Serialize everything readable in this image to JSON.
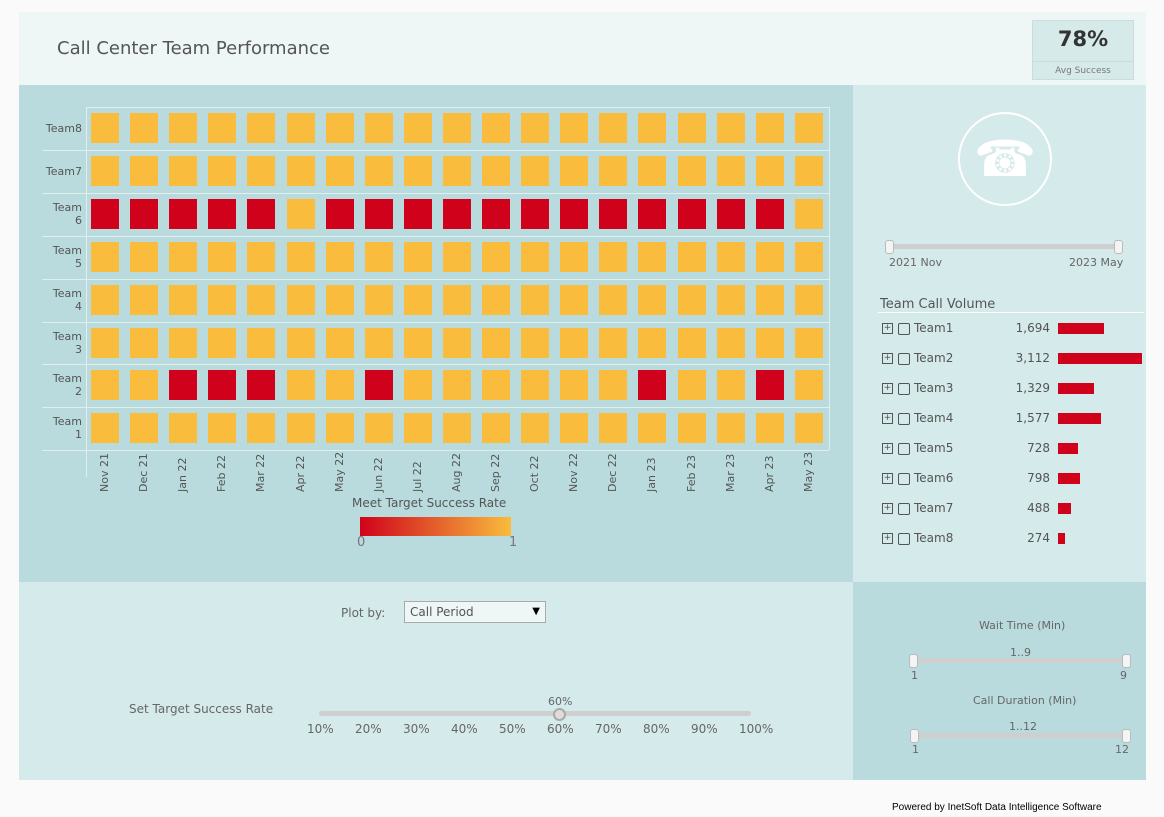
{
  "header": {
    "title": "Call Center Team Performance",
    "kpi_value": "78%",
    "kpi_label": "Avg Success"
  },
  "chart_data": {
    "type": "heatmap",
    "rows": [
      "Team8",
      "Team7",
      "Team 6",
      "Team 5",
      "Team 4",
      "Team 3",
      "Team 2",
      "Team 1"
    ],
    "columns": [
      "Nov 21",
      "Dec 21",
      "Jan 22",
      "Feb 22",
      "Mar 22",
      "Apr 22",
      "May 22",
      "Jun 22",
      "Jul 22",
      "Aug 22",
      "Sep 22",
      "Oct 22",
      "Nov 22",
      "Dec 22",
      "Jan 23",
      "Feb 23",
      "Mar 23",
      "Apr 23",
      "May 23"
    ],
    "values": [
      [
        1,
        1,
        1,
        1,
        1,
        1,
        1,
        1,
        1,
        1,
        1,
        1,
        1,
        1,
        1,
        1,
        1,
        1,
        1
      ],
      [
        1,
        1,
        1,
        1,
        1,
        1,
        1,
        1,
        1,
        1,
        1,
        1,
        1,
        1,
        1,
        1,
        1,
        1,
        1
      ],
      [
        0,
        0,
        0,
        0,
        0,
        1,
        0,
        0,
        0,
        0,
        0,
        0,
        0,
        0,
        0,
        0,
        0,
        0,
        1
      ],
      [
        1,
        1,
        1,
        1,
        1,
        1,
        1,
        1,
        1,
        1,
        1,
        1,
        1,
        1,
        1,
        1,
        1,
        1,
        1
      ],
      [
        1,
        1,
        1,
        1,
        1,
        1,
        1,
        1,
        1,
        1,
        1,
        1,
        1,
        1,
        1,
        1,
        1,
        1,
        1
      ],
      [
        1,
        1,
        1,
        1,
        1,
        1,
        1,
        1,
        1,
        1,
        1,
        1,
        1,
        1,
        1,
        1,
        1,
        1,
        1
      ],
      [
        1,
        1,
        0,
        0,
        0,
        1,
        1,
        0,
        1,
        1,
        1,
        1,
        1,
        1,
        0,
        1,
        1,
        0,
        1
      ],
      [
        1,
        1,
        1,
        1,
        1,
        1,
        1,
        1,
        1,
        1,
        1,
        1,
        1,
        1,
        1,
        1,
        1,
        1,
        1
      ]
    ],
    "legend_title": "Meet Target Success Rate",
    "legend_min": "0",
    "legend_max": "1",
    "color_low": "#d0021b",
    "color_high": "#f9bc3c"
  },
  "date_range": {
    "start": "2021 Nov",
    "end": "2023 May"
  },
  "volume": {
    "title": "Team Call Volume",
    "bar_color": "#d0021b",
    "items": [
      {
        "team": "Team1",
        "value": 1694,
        "label": "1,694"
      },
      {
        "team": "Team2",
        "value": 3112,
        "label": "3,112"
      },
      {
        "team": "Team3",
        "value": 1329,
        "label": "1,329"
      },
      {
        "team": "Team4",
        "value": 1577,
        "label": "1,577"
      },
      {
        "team": "Team5",
        "value": 728,
        "label": "728"
      },
      {
        "team": "Team6",
        "value": 798,
        "label": "798"
      },
      {
        "team": "Team7",
        "value": 488,
        "label": "488"
      },
      {
        "team": "Team8",
        "value": 274,
        "label": "274"
      }
    ]
  },
  "plot_by": {
    "label": "Plot by:",
    "value": "Call Period"
  },
  "target": {
    "label": "Set Target Success Rate",
    "value_label": "60%",
    "value": 60,
    "ticks": [
      "10%",
      "20%",
      "30%",
      "40%",
      "50%",
      "60%",
      "70%",
      "80%",
      "90%",
      "100%"
    ]
  },
  "wait": {
    "title": "Wait Time (Min)",
    "range": "1..9",
    "min": "1",
    "max": "9"
  },
  "duration": {
    "title": "Call Duration (Min)",
    "range": "1..12",
    "min": "1",
    "max": "12"
  },
  "footer": "Powered by InetSoft Data Intelligence Software"
}
